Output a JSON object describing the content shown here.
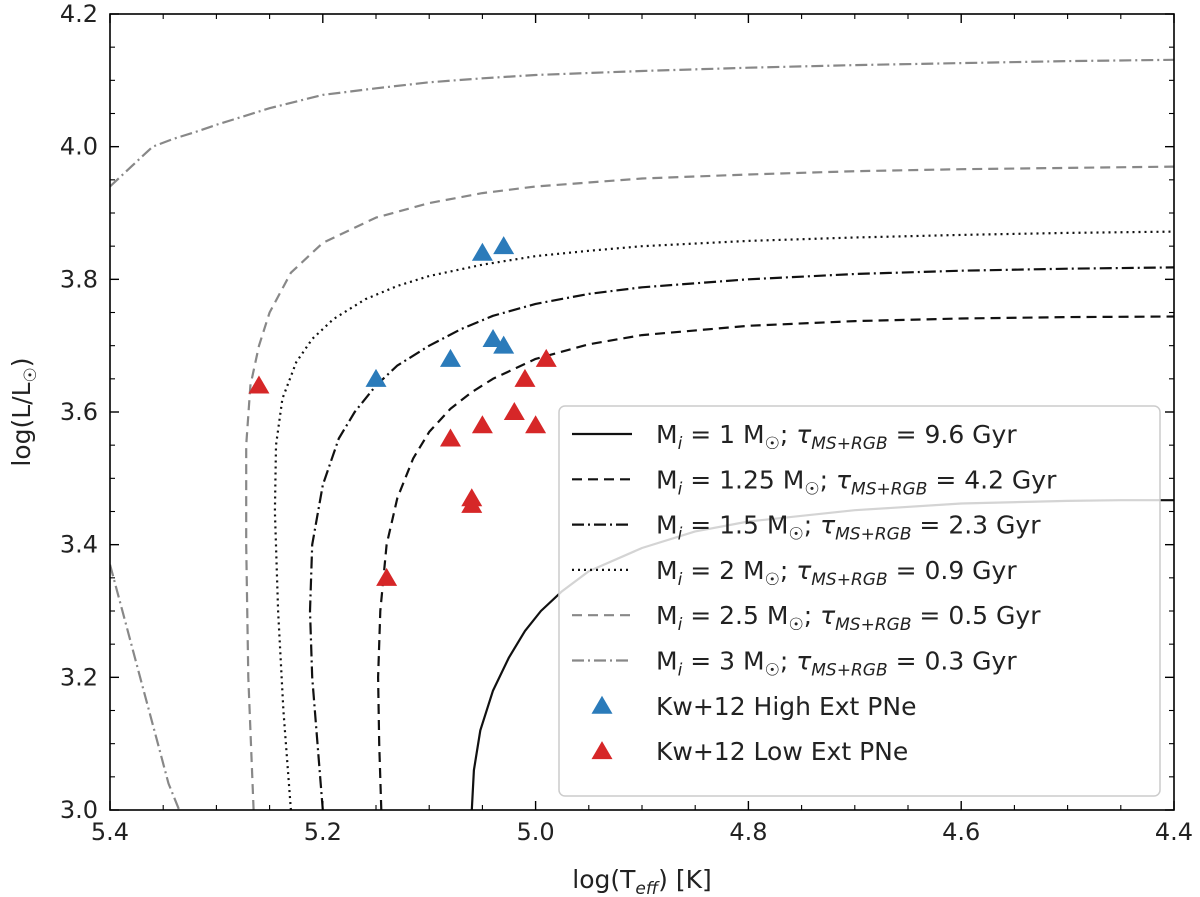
{
  "chart_data": {
    "type": "line",
    "title": "",
    "xlabel": {
      "prefix": "log(T",
      "sub": "eff",
      "suffix": ") [K]"
    },
    "ylabel": {
      "prefix": "log(L/L",
      "sub": "☉",
      "suffix": ")"
    },
    "xlim": [
      5.4,
      4.4
    ],
    "ylim": [
      3.0,
      4.2
    ],
    "x_inverted": true,
    "grid": false,
    "legend_position": "lower-right",
    "x_ticks": [
      {
        "value": 5.4,
        "label": "5.4"
      },
      {
        "value": 5.2,
        "label": "5.2"
      },
      {
        "value": 5.0,
        "label": "5.0"
      },
      {
        "value": 4.8,
        "label": "4.8"
      },
      {
        "value": 4.6,
        "label": "4.6"
      },
      {
        "value": 4.4,
        "label": "4.4"
      }
    ],
    "y_ticks": [
      {
        "value": 3.0,
        "label": "3.0"
      },
      {
        "value": 3.2,
        "label": "3.2"
      },
      {
        "value": 3.4,
        "label": "3.4"
      },
      {
        "value": 3.6,
        "label": "3.6"
      },
      {
        "value": 3.8,
        "label": "3.8"
      },
      {
        "value": 4.0,
        "label": "4.0"
      },
      {
        "value": 4.2,
        "label": "4.2"
      }
    ],
    "tau_sub": "MS+RGB",
    "series": [
      {
        "name": "mass-1",
        "mass": "1",
        "tau": "9.6",
        "color": "#111111",
        "dash": "",
        "x": [
          5.06,
          5.058,
          5.052,
          5.04,
          5.025,
          5.01,
          4.995,
          4.975,
          4.95,
          4.9,
          4.85,
          4.8,
          4.7,
          4.6,
          4.5,
          4.45,
          4.4
        ],
        "y": [
          3.0,
          3.06,
          3.12,
          3.18,
          3.23,
          3.27,
          3.3,
          3.33,
          3.36,
          3.395,
          3.42,
          3.435,
          3.452,
          3.462,
          3.466,
          3.467,
          3.467
        ]
      },
      {
        "name": "mass-1.25",
        "mass": "1.25",
        "tau": "4.2",
        "color": "#111111",
        "dash": "10,6",
        "x": [
          5.145,
          5.147,
          5.148,
          5.146,
          5.14,
          5.13,
          5.115,
          5.1,
          5.08,
          5.06,
          5.04,
          5.02,
          5.0,
          4.95,
          4.9,
          4.8,
          4.7,
          4.6,
          4.5,
          4.4
        ],
        "y": [
          3.0,
          3.1,
          3.2,
          3.3,
          3.4,
          3.47,
          3.53,
          3.57,
          3.605,
          3.63,
          3.65,
          3.665,
          3.68,
          3.702,
          3.716,
          3.73,
          3.737,
          3.741,
          3.743,
          3.744
        ]
      },
      {
        "name": "mass-1.5",
        "mass": "1.5",
        "tau": "2.3",
        "color": "#111111",
        "dash": "12,4,2,4",
        "x": [
          5.2,
          5.205,
          5.21,
          5.212,
          5.21,
          5.2,
          5.185,
          5.17,
          5.15,
          5.13,
          5.1,
          5.07,
          5.04,
          5.0,
          4.95,
          4.9,
          4.8,
          4.7,
          4.6,
          4.5,
          4.4
        ],
        "y": [
          3.0,
          3.1,
          3.2,
          3.3,
          3.4,
          3.49,
          3.56,
          3.6,
          3.64,
          3.67,
          3.7,
          3.725,
          3.745,
          3.763,
          3.778,
          3.788,
          3.8,
          3.808,
          3.813,
          3.816,
          3.818
        ]
      },
      {
        "name": "mass-2",
        "mass": "2",
        "tau": "0.9",
        "color": "#111111",
        "dash": "2,4",
        "x": [
          5.23,
          5.237,
          5.242,
          5.245,
          5.244,
          5.238,
          5.225,
          5.21,
          5.19,
          5.16,
          5.13,
          5.1,
          5.05,
          5.0,
          4.95,
          4.9,
          4.8,
          4.7,
          4.6,
          4.5,
          4.4
        ],
        "y": [
          3.0,
          3.15,
          3.3,
          3.45,
          3.55,
          3.62,
          3.675,
          3.71,
          3.74,
          3.77,
          3.79,
          3.805,
          3.822,
          3.835,
          3.843,
          3.85,
          3.858,
          3.863,
          3.867,
          3.87,
          3.872
        ]
      },
      {
        "name": "mass-2.5",
        "mass": "2.5",
        "tau": "0.5",
        "color": "#888888",
        "dash": "10,6",
        "x": [
          5.265,
          5.27,
          5.272,
          5.272,
          5.268,
          5.26,
          5.25,
          5.23,
          5.2,
          5.15,
          5.1,
          5.05,
          5.0,
          4.9,
          4.8,
          4.7,
          4.6,
          4.5,
          4.4
        ],
        "y": [
          3.0,
          3.2,
          3.4,
          3.55,
          3.64,
          3.7,
          3.75,
          3.81,
          3.855,
          3.893,
          3.915,
          3.93,
          3.94,
          3.952,
          3.958,
          3.963,
          3.966,
          3.968,
          3.97
        ]
      },
      {
        "name": "mass-3",
        "mass": "3",
        "tau": "0.3",
        "color": "#888888",
        "dash": "12,4,2,4",
        "x": [
          5.4,
          5.38,
          5.36,
          5.34,
          5.32,
          5.3,
          5.25,
          5.2,
          5.15,
          5.1,
          5.05,
          5.0,
          4.9,
          4.8,
          4.7,
          4.6,
          4.5,
          4.4
        ],
        "y": [
          3.94,
          3.97,
          4.0,
          4.012,
          4.022,
          4.033,
          4.058,
          4.078,
          4.088,
          4.097,
          4.103,
          4.108,
          4.114,
          4.119,
          4.123,
          4.126,
          4.129,
          4.131
        ]
      },
      {
        "name": "mass-3-lower-branch",
        "color": "#888888",
        "dash": "12,4,2,4",
        "x": [
          5.4,
          5.385,
          5.37,
          5.355,
          5.345,
          5.335
        ],
        "y": [
          3.37,
          3.28,
          3.19,
          3.1,
          3.04,
          3.0
        ]
      }
    ],
    "markers": [
      {
        "name": "Kw+12 High Ext PNe",
        "color": "#2b7bba",
        "points": [
          {
            "x": 5.05,
            "y": 3.84
          },
          {
            "x": 5.03,
            "y": 3.85
          },
          {
            "x": 5.04,
            "y": 3.71
          },
          {
            "x": 5.03,
            "y": 3.7
          },
          {
            "x": 5.08,
            "y": 3.68
          },
          {
            "x": 5.15,
            "y": 3.65
          }
        ]
      },
      {
        "name": "Kw+12 Low Ext PNe",
        "color": "#d62728",
        "points": [
          {
            "x": 5.26,
            "y": 3.64
          },
          {
            "x": 4.99,
            "y": 3.68
          },
          {
            "x": 5.01,
            "y": 3.65
          },
          {
            "x": 5.02,
            "y": 3.6
          },
          {
            "x": 5.05,
            "y": 3.58
          },
          {
            "x": 5.0,
            "y": 3.58
          },
          {
            "x": 5.08,
            "y": 3.56
          },
          {
            "x": 5.06,
            "y": 3.47
          },
          {
            "x": 5.06,
            "y": 3.46
          },
          {
            "x": 5.14,
            "y": 3.35
          }
        ]
      }
    ]
  }
}
